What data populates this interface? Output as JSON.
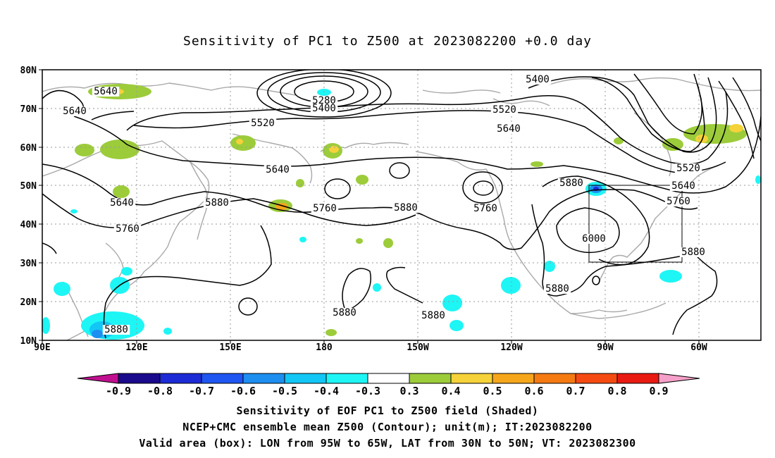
{
  "title": "Sensitivity of PC1 to Z500 at 2023082200 +0.0 day",
  "map": {
    "lon_labels": [
      "90E",
      "120E",
      "150E",
      "180",
      "150W",
      "120W",
      "90W",
      "60W"
    ],
    "lat_labels": [
      "80N",
      "70N",
      "60N",
      "50N",
      "40N",
      "30N",
      "20N",
      "10N"
    ],
    "lon_range": [
      "90E",
      "40W"
    ],
    "lat_range": [
      "10N",
      "80N"
    ],
    "grid": "dotted",
    "valid_box": {
      "lon": [
        "95W",
        "65W"
      ],
      "lat": [
        "30N",
        "50N"
      ]
    }
  },
  "contour_labels": [
    "5640",
    "5640",
    "5640",
    "5760",
    "5280",
    "5400",
    "5400",
    "5520",
    "5520",
    "5640",
    "5640",
    "5520",
    "5640",
    "5760",
    "5880",
    "5760",
    "5880",
    "5760",
    "5880",
    "6000",
    "5880",
    "5880",
    "5880",
    "5880",
    "5880"
  ],
  "colorbar": {
    "labels": [
      "-0.9",
      "-0.8",
      "-0.7",
      "-0.6",
      "-0.5",
      "-0.4",
      "-0.3",
      "0.3",
      "0.4",
      "0.5",
      "0.6",
      "0.7",
      "0.8",
      "0.9"
    ],
    "colors": [
      "#1a0a8c",
      "#1c2bd6",
      "#1f55f0",
      "#1e8ef0",
      "#12c6f5",
      "#1ef5f5",
      "#ffffff",
      "#9ccc3a",
      "#f5d23a",
      "#f5a61a",
      "#f57a12",
      "#f54a12",
      "#e81a12"
    ],
    "low_end_color": "#c0108f",
    "high_end_color": "#f5a0c8"
  },
  "captions": {
    "line1": "Sensitivity of EOF PC1 to Z500 field (Shaded)",
    "line2": "NCEP+CMC ensemble mean Z500 (Contour); unit(m); IT:2023082200",
    "line3": "Valid area (box): LON from 95W to 65W, LAT from 30N to 50N; VT: 2023082300"
  }
}
